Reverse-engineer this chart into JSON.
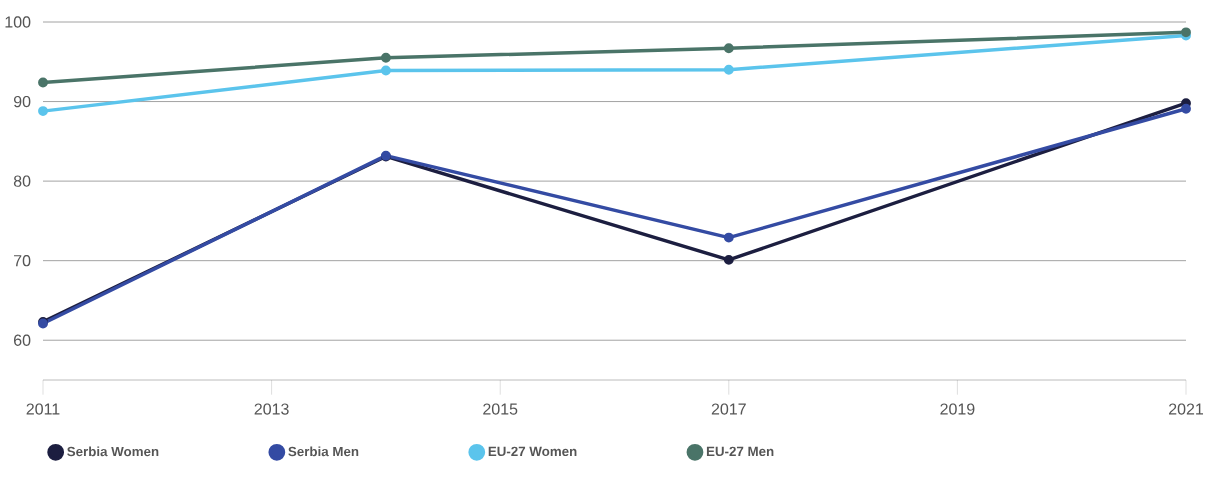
{
  "chart_data": {
    "type": "line",
    "x": [
      2011,
      2014,
      2017,
      2021
    ],
    "series": [
      {
        "name": "Serbia Women",
        "color": "#1c1e40",
        "values": [
          62.3,
          83.1,
          70.1,
          89.8
        ]
      },
      {
        "name": "Serbia Men",
        "color": "#344ba3",
        "values": [
          62.1,
          83.2,
          72.9,
          89.1
        ]
      },
      {
        "name": "EU-27 Women",
        "color": "#5bc4ec",
        "values": [
          88.8,
          93.9,
          94.0,
          98.3
        ]
      },
      {
        "name": "EU-27 Men",
        "color": "#4a7468",
        "values": [
          92.4,
          95.5,
          96.7,
          98.7
        ]
      }
    ],
    "xlim": [
      2011,
      2021
    ],
    "xticks": [
      2011,
      2013,
      2015,
      2017,
      2019,
      2021
    ],
    "ylim": [
      55,
      100
    ],
    "yticks": [
      60,
      70,
      80,
      90,
      100
    ],
    "grid": "y",
    "legend": "bottom",
    "marker": "circle",
    "line_style": "solid"
  }
}
